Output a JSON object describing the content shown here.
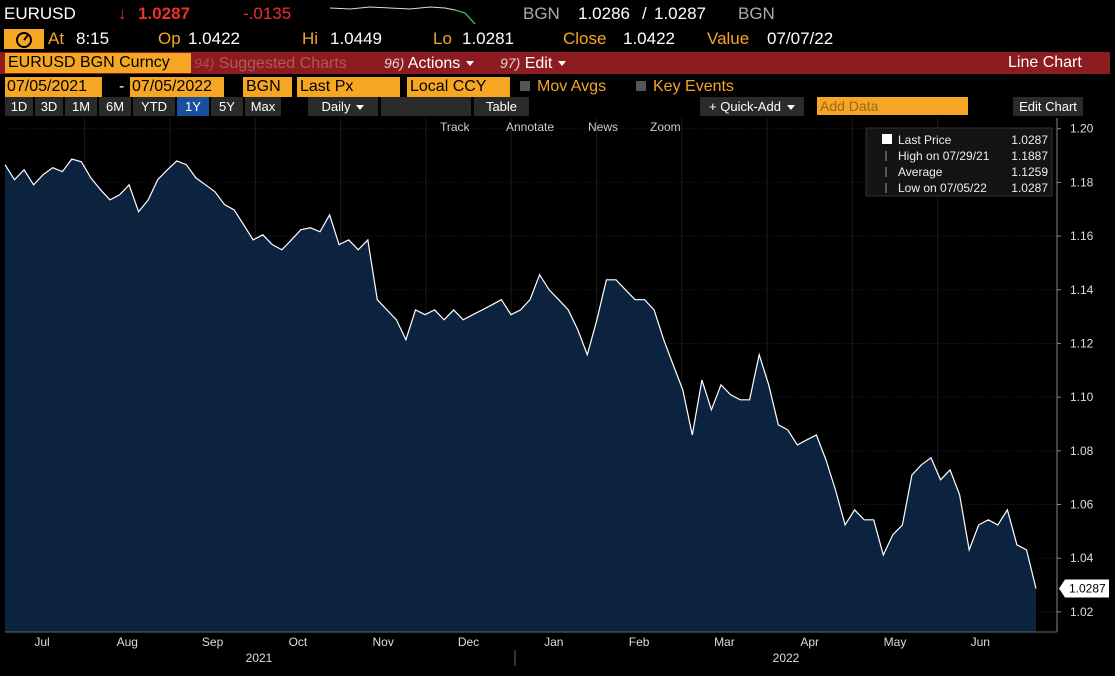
{
  "header": {
    "ticker": "EURUSD",
    "direction": "↓",
    "price": "1.0287",
    "change": "-.0135",
    "source": "BGN",
    "bid": "1.0286",
    "slash": "/",
    "ask": "1.0287",
    "source2": "BGN"
  },
  "quote": [
    {
      "label": "At",
      "value": "8:15"
    },
    {
      "label": "Op",
      "value": "1.0422"
    },
    {
      "label": "Hi",
      "value": "1.0449"
    },
    {
      "label": "Lo",
      "value": "1.0281"
    },
    {
      "label": "Close",
      "value": "1.0422"
    },
    {
      "label": "Value",
      "value": "07/07/22"
    }
  ],
  "menu": {
    "security": "EURUSD BGN Curncy",
    "suggested": {
      "num": "94)",
      "label": "Suggested Charts"
    },
    "actions": {
      "num": "96)",
      "label": "Actions"
    },
    "edit": {
      "num": "97)",
      "label": "Edit"
    },
    "chart_type": "Line Chart"
  },
  "controls": {
    "start": "07/05/2021",
    "sep": "-",
    "end": "07/05/2022",
    "source": "BGN",
    "field": "Last Px",
    "currency": "Local CCY",
    "mov_avgs": "Mov Avgs",
    "key_events": "Key Events"
  },
  "toolbar": {
    "periods": [
      "1D",
      "3D",
      "1M",
      "6M",
      "YTD",
      "1Y",
      "5Y",
      "Max"
    ],
    "selected_period": "1Y",
    "frequency": "Daily",
    "table": "Table",
    "quick_add": "+ Quick-Add",
    "add_data": "Add Data",
    "edit_chart": "Edit Chart"
  },
  "tools": [
    "Track",
    "Annotate",
    "News",
    "Zoom"
  ],
  "chart_data": {
    "type": "line",
    "color": "#ffffff",
    "area_color": "#0c2340",
    "grid": true,
    "ylim": [
      1.0125,
      1.204
    ],
    "yticks": [
      1.02,
      1.04,
      1.06,
      1.08,
      {
        "value": 1.1,
        "label": "1.10"
      },
      1.12,
      1.14,
      1.16,
      1.18,
      {
        "value": 1.2,
        "label": "1.20"
      }
    ],
    "months": [
      "Jul",
      "Aug",
      "Sep",
      "Oct",
      "Nov",
      "Dec",
      "Jan",
      "Feb",
      "Mar",
      "Apr",
      "May",
      "Jun"
    ],
    "years": [
      "2021",
      "2022"
    ],
    "legend_corner": "top-right",
    "legend": [
      {
        "label": "Last Price",
        "value": 1.0287
      },
      {
        "label": "High on 07/29/21",
        "value": 1.1887
      },
      {
        "label": "Average",
        "value": 1.1259
      },
      {
        "label": "Low on 07/05/22",
        "value": 1.0287
      }
    ],
    "values": [
      1.1866,
      1.181,
      1.1847,
      1.1791,
      1.1829,
      1.1855,
      1.184,
      1.1887,
      1.1877,
      1.1817,
      1.1773,
      1.1735,
      1.1754,
      1.1791,
      1.1691,
      1.1735,
      1.181,
      1.1847,
      1.188,
      1.1866,
      1.1817,
      1.1791,
      1.1765,
      1.1717,
      1.1698,
      1.1642,
      1.1586,
      1.1605,
      1.1568,
      1.1549,
      1.1586,
      1.1624,
      1.1631,
      1.1616,
      1.1679,
      1.1568,
      1.1586,
      1.1549,
      1.1586,
      1.1363,
      1.1325,
      1.1288,
      1.1214,
      1.1325,
      1.1307,
      1.1325,
      1.1288,
      1.1325,
      1.1288,
      1.1307,
      1.1325,
      1.1344,
      1.1363,
      1.1307,
      1.1325,
      1.1363,
      1.1456,
      1.14,
      1.1363,
      1.1325,
      1.1251,
      1.1158,
      1.1288,
      1.1437,
      1.1437,
      1.14,
      1.1363,
      1.1363,
      1.1325,
      1.1214,
      1.112,
      1.1027,
      1.0859,
      1.1064,
      1.0953,
      1.1046,
      1.1009,
      1.099,
      1.099,
      1.1158,
      1.1046,
      1.0897,
      1.0878,
      1.0822,
      1.0841,
      1.0859,
      1.0766,
      1.0654,
      1.0524,
      1.058,
      1.0543,
      1.0543,
      1.0412,
      1.0487,
      1.0524,
      1.071,
      1.0748,
      1.0774,
      1.0692,
      1.0729,
      1.0636,
      1.0431,
      1.0524,
      1.0543,
      1.0524,
      1.058,
      1.045,
      1.0431,
      1.0287
    ]
  }
}
